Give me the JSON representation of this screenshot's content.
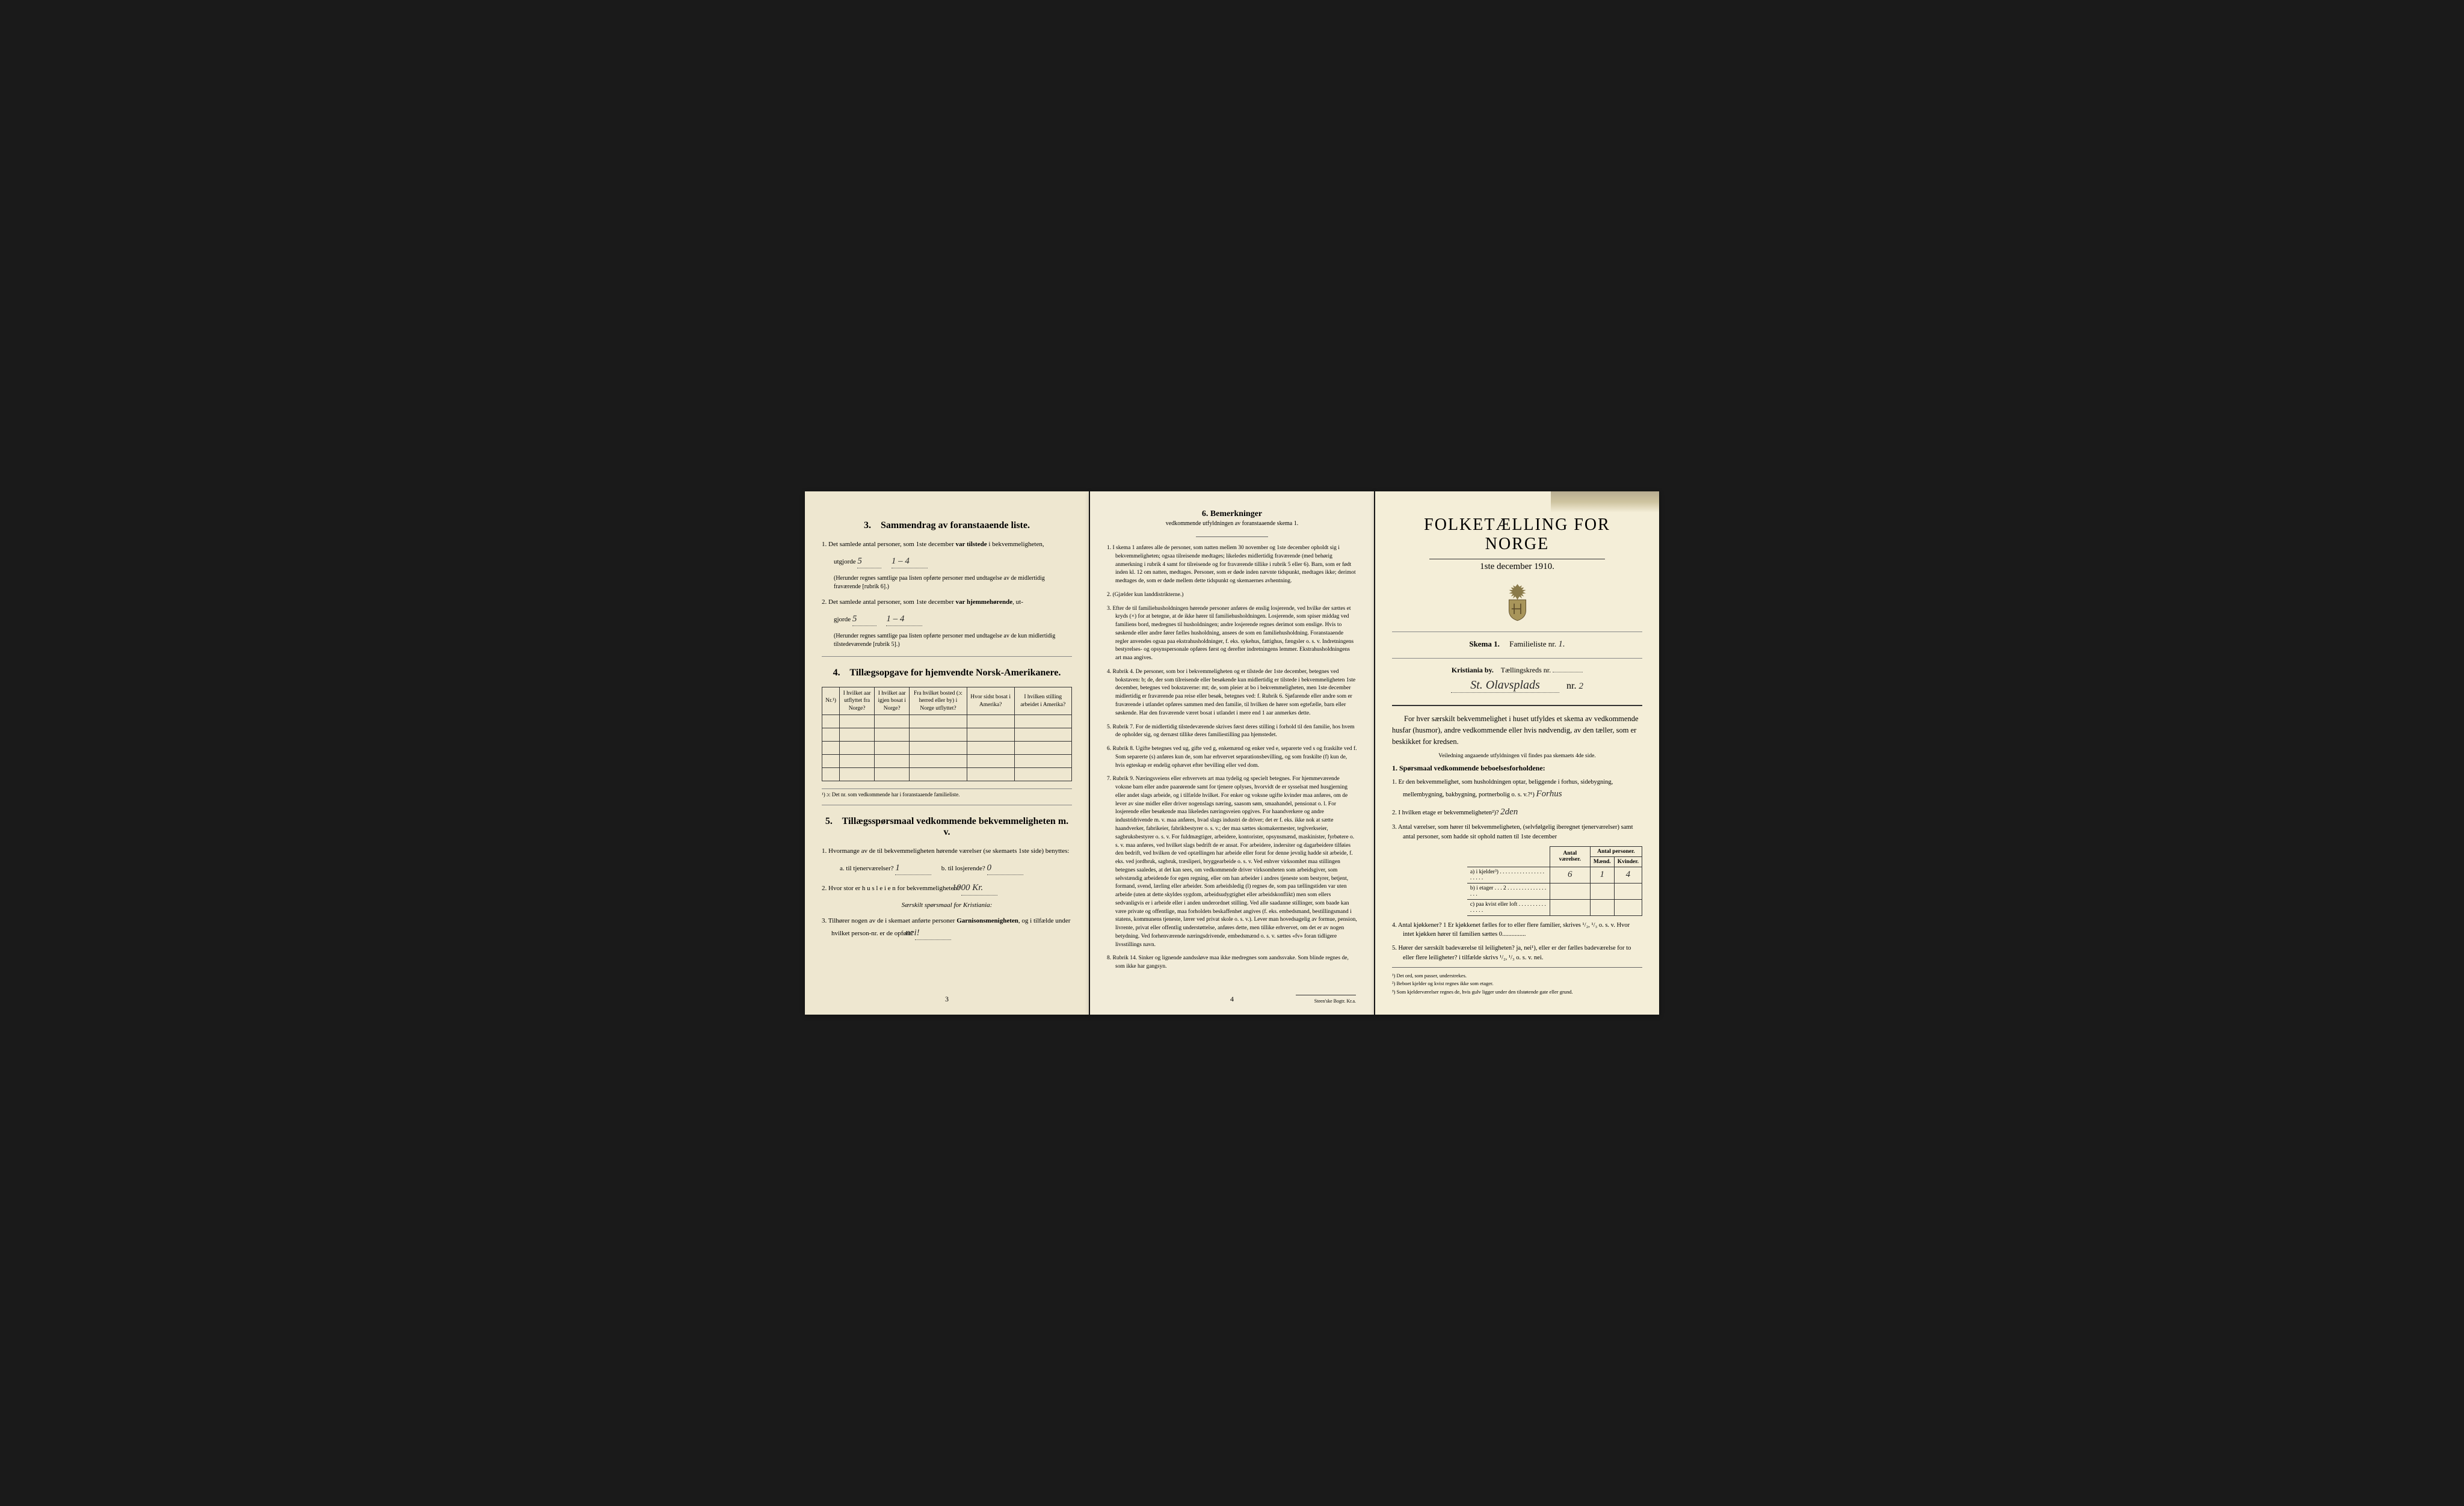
{
  "colors": {
    "paper_left": "#eee7d0",
    "paper_middle": "#f2ecd9",
    "paper_right": "#f4eed8",
    "background": "#1a1a1a",
    "text": "#1a1a1a",
    "border": "#333333",
    "stain": "#7a6a4a"
  },
  "typography": {
    "body_fontsize": 11,
    "title_fontsize": 28,
    "section_fontsize": 16,
    "small_fontsize": 9.5
  },
  "left_page": {
    "section3": {
      "title": "Sammendrag av foranstaaende liste.",
      "num": "3.",
      "item1_prefix": "1.  Det samlede antal personer, som 1ste december",
      "item1_bold": "var tilstede",
      "item1_suffix": "i bekvemmeligheten,",
      "utgjorde": "utgjorde",
      "hand_val1a": "5",
      "hand_val1b": "1 – 4",
      "note1": "(Herunder regnes samtlige paa listen opførte personer med undtagelse av de midlertidig fraværende [rubrik 6].)",
      "item2_prefix": "2.  Det samlede antal personer, som 1ste december",
      "item2_bold": "var hjemmehørende",
      "item2_suffix": ", ut-",
      "gjorde": "gjorde",
      "hand_val2a": "5",
      "hand_val2b": "1 – 4",
      "note2": "(Herunder regnes samtlige paa listen opførte personer med undtagelse av de kun midlertidig tilstedeværende [rubrik 5].)"
    },
    "section4": {
      "title": "Tillægsopgave for hjemvendte Norsk-Amerikanere.",
      "num": "4.",
      "cols": {
        "c1": "Nr.¹)",
        "c2": "I hvilket aar utflyttet fra Norge?",
        "c3": "I hvilket aar igjen bosat i Norge?",
        "c4": "Fra hvilket bosted (ɔ: herred eller by) i Norge utflyttet?",
        "c5": "Hvor sidst bosat i Amerika?",
        "c6": "I hvilken stilling arbeidet i Amerika?"
      },
      "footnote": "¹) ɔ: Det nr. som vedkommende har i foranstaaende familieliste."
    },
    "section5": {
      "title": "Tillægsspørsmaal vedkommende bekvemmeligheten m. v.",
      "num": "5.",
      "q1": "1. Hvormange av de til bekvemmeligheten hørende værelser (se skemaets 1ste side) benyttes:",
      "q1a_label": "a.  til tjenerværelser?",
      "q1a_val": "1",
      "q1b_label": "b.  til losjerende?",
      "q1b_val": "0",
      "q2_label": "2.  Hvor stor er  h u s l e i e n  for bekvemmeligheten?",
      "q2_val": "1000 Kr.",
      "special_note": "Særskilt spørsmaal for Kristiania:",
      "q3_prefix": "3.  Tilhører nogen av de i skemaet anførte personer",
      "q3_bold": "Garnisonsmenigheten",
      "q3_suffix": ", og i tilfælde under hvilket person-nr. er de opført?",
      "q3_val": "nei!"
    },
    "page_num": "3"
  },
  "middle_page": {
    "heading_num": "6.  Bemerkninger",
    "heading_sub": "vedkommende utfyldningen av foranstaaende skema 1.",
    "items": [
      "1. I skema 1 anføres alle de personer, som natten mellem 30 november og 1ste december opholdt sig i bekvemmeligheten; ogsaa tilreisende medtages; likeledes midlertidig fraværende (med behørig anmerkning i rubrik 4 samt for tilreisende og for fraværende tillike i rubrik 5 eller 6). Barn, som er født inden kl. 12 om natten, medtages. Personer, som er døde inden nævnte tidspunkt, medtages ikke; derimot medtages de, som er døde mellem dette tidspunkt og skemaernes avhentning.",
      "2. (Gjælder kun landdistrikterne.)",
      "3. Efter de til familiehusholdningen hørende personer anføres de enslig losjerende, ved hvilke der sættes et kryds (×) for at betegne, at de ikke hører til familiehusholdningen. Losjerende, som spiser middag ved familiens bord, medregnes til husholdningen; andre losjerende regnes derimot som enslige. Hvis to søskende eller andre fører fælles husholdning, ansees de som en familiehusholdning.\n    Foranstaaende regler anvendes ogsaa paa ekstrahusholdninger, f. eks. sykehus, fattighus, fængsler o. s. v. Indretningens bestyrelses- og opsynspersonale opføres først og derefter indretningens lemmer. Ekstrahusholdningens art maa angives.",
      "4. Rubrik 4. De personer, som bor i bekvemmeligheten og er tilstede der 1ste december, betegnes ved bokstaven: b; de, der som tilreisende eller besøkende kun midlertidig er tilstede i bekvemmeligheten 1ste december, betegnes ved bokstaverne: mt; de, som pleier at bo i bekvemmeligheten, men 1ste december midlertidig er fraværende paa reise eller besøk, betegnes ved: f.\n    Rubrik 6. Sjøfarende eller andre som er fraværende i utlandet opføres sammen med den familie, til hvilken de hører som egtefælle, barn eller søskende.\n    Har den fraværende været bosat i utlandet i mere end 1 aar anmerkes dette.",
      "5. Rubrik 7. For de midlertidig tilstedeværende skrives først deres stilling i forhold til den familie, hos hvem de opholder sig, og dernæst tillike deres familiestilling paa hjemstedet.",
      "6. Rubrik 8. Ugifte betegnes ved ug, gifte ved g, enkemænd og enker ved e, separerte ved s og fraskilte ved f. Som separerte (s) anføres kun de, som har erhvervet separationsbevilling, og som fraskilte (f) kun de, hvis egteskap er endelig ophævet efter bevilling eller ved dom.",
      "7. Rubrik 9. Næringsveiens eller erhvervets art maa tydelig og specielt betegnes.\n    For hjemmeværende voksne barn eller andre paarørende samt for tjenere oplyses, hvorvidt de er sysselsat med husgjerning eller andet slags arbeide, og i tilfælde hvilket. For enker og voksne ugifte kvinder maa anføres, om de lever av sine midler eller driver nogenslags næring, saasom søm, smaahandel, pensionat o. l.\n    For losjerende eller besøkende maa likeledes næringsveien opgives.\n    For haandverkere og andre industridrivende m. v. maa anføres, hvad slags industri de driver; det er f. eks. ikke nok at sætte haandverker, fabrikeier, fabrikbestyrer o. s. v.; der maa sættes skomakermester, teglverkseier, sagbruksbestyrer o. s. v.\n    For fuldmægtiger, arbeidere, kontorister, opsynsmænd, maskinister, fyrbøtere o. s. v. maa anføres, ved hvilket slags bedrift de er ansat.\n    For arbeidere, indersiter og dagarbeidere tilføies den bedrift, ved hvilken de ved optællingen har arbeide eller forut for denne jevnlig hadde sit arbeide, f. eks. ved jordbruk, sagbruk, træsliperi, bryggearbeide o. s. v.\n    Ved enhver virksomhet maa stillingen betegnes saaledes, at det kan sees, om vedkommende driver virksomheten som arbeidsgiver, som selvstændig arbeidende for egen regning, eller om han arbeider i andres tjeneste som bestyrer, betjent, formand, svend, lærling eller arbeider.\n    Som arbeidsledig (l) regnes de, som paa tællingstiden var uten arbeide (uten at dette skyldes sygdom, arbeidsudygtighet eller arbeidskonflikt) men som ellers sedvanligvis er i arbeide eller i anden underordnet stilling.\n    Ved alle saadanne stillinger, som baade kan være private og offentlige, maa forholdets beskaffenhet angives (f. eks. embedsmand, bestillingsmand i statens, kommunens tjeneste, lærer ved privat skole o. s. v.).\n    Lever man hovedsagelig av formue, pension, livrente, privat eller offentlig understøttelse, anføres dette, men tillike erhvervet, om det er av nogen betydning.\n    Ved forhenværende næringsdrivende, embedsmænd o. s. v. sættes «fv» foran tidligere livsstillings navn.",
      "8. Rubrik 14. Sinker og lignende aandssløve maa ikke medregnes som aandssvake.\n    Som blinde regnes de, som ikke har gangsyn."
    ],
    "page_num": "4",
    "printer": "Steen'ske Bogtr.  Kr.a."
  },
  "right_page": {
    "census_title": "FOLKETÆLLING FOR NORGE",
    "census_date": "1ste december 1910.",
    "skema_label": "Skema 1.",
    "familieliste_label": "Familieliste nr.",
    "familieliste_val": "1.",
    "city_label": "Kristiania by.",
    "kreds_label": "Tællingskreds nr.",
    "kreds_val": "",
    "address_hand": "St. Olavsplads",
    "address_nr_label": "nr.",
    "address_nr_val": "2",
    "intro": "For hver særskilt bekvemmelighet i huset utfyldes et skema av vedkommende husfar (husmor), andre vedkommende eller hvis nødvendig, av den tæller, som er beskikket for kredsen.",
    "small_note": "Veiledning angaaende utfyldningen vil findes paa skemaets 4de side.",
    "q1_title": "1.  Spørsmaal vedkommende beboelsesforholdene:",
    "q1_1": "1.  Er den bekvemmelighet, som husholdningen optar, beliggende i forhus, sidebygning, mellembygning, bakbygning, portnerbolig o. s. v.?¹)",
    "q1_1_val": "Forhus",
    "q1_2": "2.  I hvilken etage er bekvemmeligheten²)?",
    "q1_2_val": "2den",
    "q1_3": "3.  Antal værelser, som hører til bekvemmeligheten, (selvfølgelig iberegnet tjenerværelser) samt antal personer, som hadde sit ophold natten til 1ste december",
    "table": {
      "h1": "Antal værelser.",
      "h2": "Antal personer.",
      "h2a": "Mænd.",
      "h2b": "Kvinder.",
      "rows": [
        {
          "label": "a) i kjelder³) . . . . . . . . . . . . . . . . . . . . .",
          "vaer": "6",
          "m": "1",
          "k": "4"
        },
        {
          "label": "b) i etager . . . 2 . . . . . . . . . . . . . . . . .",
          "vaer": "",
          "m": "",
          "k": ""
        },
        {
          "label": "c) paa kvist eller loft . . . . . . . . . . . . . . .",
          "vaer": "",
          "m": "",
          "k": ""
        }
      ]
    },
    "q1_4": "4.  Antal kjøkkener?   1    Er kjøkkenet fælles for to eller flere familier, skrives ¹/₂, ¹/₃ o. s. v.  Hvor intet kjøkken hører til familien sættes 0...............",
    "q1_5": "5.  Hører der særskilt badeværelse til leiligheten?  ja,  nei¹), eller er der fælles badeværelse for to eller flere leiligheter?  i tilfælde skrivs ¹/₂, ¹/₃ o. s. v.   nei.",
    "footnotes": {
      "f1": "¹)  Det ord, som passer, understrekes.",
      "f2": "²)  Beboet kjelder og kvist regnes ikke som etager.",
      "f3": "³)  Som kjelderværelser regnes de, hvis gulv ligger under den tilstøtende gate eller grund."
    }
  }
}
